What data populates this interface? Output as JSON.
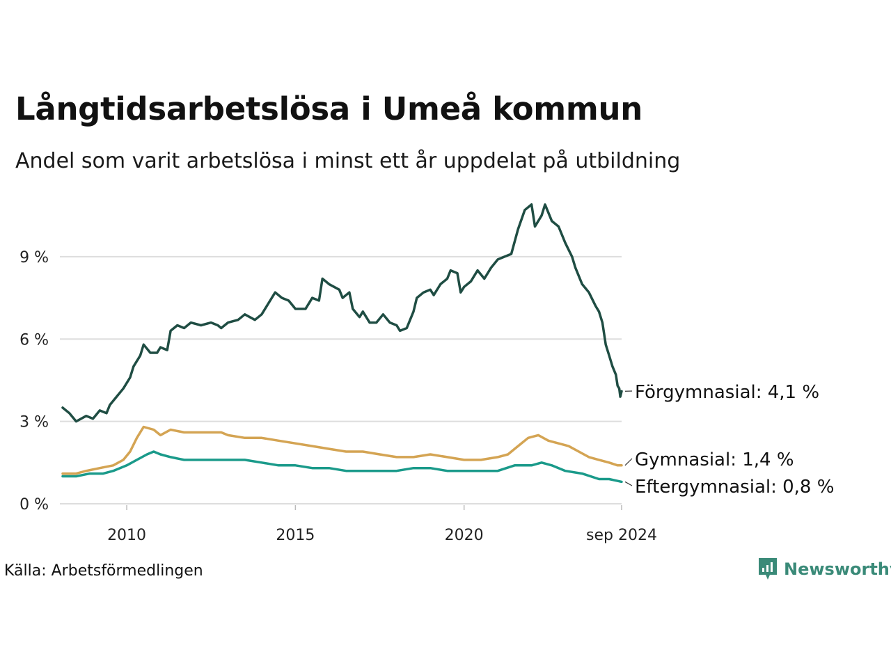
{
  "title": "Långtidsarbetslösa i Umeå kommun",
  "subtitle": "Andel som varit arbetslösa i minst ett år uppdelat på utbildning",
  "source": "Källa: Arbetsförmedlingen",
  "brand": "Newsworthy",
  "colors": {
    "forgymnasial": "#1f4d43",
    "gymnasial": "#d4a453",
    "eftergymnasial": "#1a9a8a",
    "grid": "#dddddd",
    "brand": "#3a8a78"
  },
  "chart_data": {
    "type": "line",
    "ylim": [
      0,
      11
    ],
    "xlim": [
      2008.1,
      2024.67
    ],
    "y_ticks": [
      {
        "value": 0,
        "label": "0 %"
      },
      {
        "value": 3,
        "label": "3 %"
      },
      {
        "value": 6,
        "label": "6 %"
      },
      {
        "value": 9,
        "label": "9 %"
      }
    ],
    "x_ticks": [
      {
        "value": 2010,
        "label": "2010"
      },
      {
        "value": 2015,
        "label": "2015"
      },
      {
        "value": 2020,
        "label": "2020"
      },
      {
        "value": 2024.67,
        "label": "sep 2024"
      }
    ],
    "grid": true,
    "series": [
      {
        "name": "Förgymnasial",
        "end_label": "Förgymnasial: 4,1 %",
        "color_key": "forgymnasial",
        "points": [
          [
            2008.1,
            3.5
          ],
          [
            2008.3,
            3.3
          ],
          [
            2008.5,
            3.0
          ],
          [
            2008.8,
            3.2
          ],
          [
            2009.0,
            3.1
          ],
          [
            2009.2,
            3.4
          ],
          [
            2009.4,
            3.3
          ],
          [
            2009.5,
            3.6
          ],
          [
            2009.7,
            3.9
          ],
          [
            2009.9,
            4.2
          ],
          [
            2010.1,
            4.6
          ],
          [
            2010.2,
            5.0
          ],
          [
            2010.4,
            5.4
          ],
          [
            2010.5,
            5.8
          ],
          [
            2010.7,
            5.5
          ],
          [
            2010.9,
            5.5
          ],
          [
            2011.0,
            5.7
          ],
          [
            2011.2,
            5.6
          ],
          [
            2011.3,
            6.3
          ],
          [
            2011.5,
            6.5
          ],
          [
            2011.7,
            6.4
          ],
          [
            2011.9,
            6.6
          ],
          [
            2012.2,
            6.5
          ],
          [
            2012.5,
            6.6
          ],
          [
            2012.7,
            6.5
          ],
          [
            2012.8,
            6.4
          ],
          [
            2013.0,
            6.6
          ],
          [
            2013.3,
            6.7
          ],
          [
            2013.5,
            6.9
          ],
          [
            2013.8,
            6.7
          ],
          [
            2014.0,
            6.9
          ],
          [
            2014.2,
            7.3
          ],
          [
            2014.4,
            7.7
          ],
          [
            2014.6,
            7.5
          ],
          [
            2014.8,
            7.4
          ],
          [
            2015.0,
            7.1
          ],
          [
            2015.3,
            7.1
          ],
          [
            2015.5,
            7.5
          ],
          [
            2015.7,
            7.4
          ],
          [
            2015.8,
            8.2
          ],
          [
            2016.0,
            8.0
          ],
          [
            2016.3,
            7.8
          ],
          [
            2016.4,
            7.5
          ],
          [
            2016.6,
            7.7
          ],
          [
            2016.7,
            7.1
          ],
          [
            2016.9,
            6.8
          ],
          [
            2017.0,
            7.0
          ],
          [
            2017.2,
            6.6
          ],
          [
            2017.4,
            6.6
          ],
          [
            2017.6,
            6.9
          ],
          [
            2017.8,
            6.6
          ],
          [
            2018.0,
            6.5
          ],
          [
            2018.1,
            6.3
          ],
          [
            2018.3,
            6.4
          ],
          [
            2018.5,
            7.0
          ],
          [
            2018.6,
            7.5
          ],
          [
            2018.8,
            7.7
          ],
          [
            2019.0,
            7.8
          ],
          [
            2019.1,
            7.6
          ],
          [
            2019.3,
            8.0
          ],
          [
            2019.5,
            8.2
          ],
          [
            2019.6,
            8.5
          ],
          [
            2019.8,
            8.4
          ],
          [
            2019.9,
            7.7
          ],
          [
            2020.0,
            7.9
          ],
          [
            2020.2,
            8.1
          ],
          [
            2020.4,
            8.5
          ],
          [
            2020.6,
            8.2
          ],
          [
            2020.8,
            8.6
          ],
          [
            2021.0,
            8.9
          ],
          [
            2021.2,
            9.0
          ],
          [
            2021.4,
            9.1
          ],
          [
            2021.6,
            10.0
          ],
          [
            2021.8,
            10.7
          ],
          [
            2022.0,
            10.9
          ],
          [
            2022.1,
            10.1
          ],
          [
            2022.3,
            10.5
          ],
          [
            2022.4,
            10.9
          ],
          [
            2022.6,
            10.3
          ],
          [
            2022.8,
            10.1
          ],
          [
            2023.0,
            9.5
          ],
          [
            2023.2,
            9.0
          ],
          [
            2023.3,
            8.6
          ],
          [
            2023.5,
            8.0
          ],
          [
            2023.7,
            7.7
          ],
          [
            2023.9,
            7.2
          ],
          [
            2024.0,
            7.0
          ],
          [
            2024.1,
            6.6
          ],
          [
            2024.2,
            5.8
          ],
          [
            2024.3,
            5.4
          ],
          [
            2024.4,
            5.0
          ],
          [
            2024.5,
            4.7
          ],
          [
            2024.55,
            4.3
          ],
          [
            2024.6,
            4.2
          ],
          [
            2024.63,
            3.9
          ],
          [
            2024.67,
            4.1
          ]
        ]
      },
      {
        "name": "Gymnasial",
        "end_label": "Gymnasial: 1,4 %",
        "color_key": "gymnasial",
        "points": [
          [
            2008.1,
            1.1
          ],
          [
            2008.5,
            1.1
          ],
          [
            2008.8,
            1.2
          ],
          [
            2009.2,
            1.3
          ],
          [
            2009.6,
            1.4
          ],
          [
            2009.9,
            1.6
          ],
          [
            2010.1,
            1.9
          ],
          [
            2010.3,
            2.4
          ],
          [
            2010.5,
            2.8
          ],
          [
            2010.8,
            2.7
          ],
          [
            2011.0,
            2.5
          ],
          [
            2011.3,
            2.7
          ],
          [
            2011.7,
            2.6
          ],
          [
            2012.0,
            2.6
          ],
          [
            2012.5,
            2.6
          ],
          [
            2012.8,
            2.6
          ],
          [
            2013.0,
            2.5
          ],
          [
            2013.5,
            2.4
          ],
          [
            2014.0,
            2.4
          ],
          [
            2014.5,
            2.3
          ],
          [
            2015.0,
            2.2
          ],
          [
            2015.5,
            2.1
          ],
          [
            2016.0,
            2.0
          ],
          [
            2016.5,
            1.9
          ],
          [
            2017.0,
            1.9
          ],
          [
            2017.5,
            1.8
          ],
          [
            2018.0,
            1.7
          ],
          [
            2018.5,
            1.7
          ],
          [
            2019.0,
            1.8
          ],
          [
            2019.5,
            1.7
          ],
          [
            2020.0,
            1.6
          ],
          [
            2020.5,
            1.6
          ],
          [
            2021.0,
            1.7
          ],
          [
            2021.3,
            1.8
          ],
          [
            2021.6,
            2.1
          ],
          [
            2021.9,
            2.4
          ],
          [
            2022.2,
            2.5
          ],
          [
            2022.5,
            2.3
          ],
          [
            2022.8,
            2.2
          ],
          [
            2023.1,
            2.1
          ],
          [
            2023.4,
            1.9
          ],
          [
            2023.7,
            1.7
          ],
          [
            2024.0,
            1.6
          ],
          [
            2024.3,
            1.5
          ],
          [
            2024.55,
            1.4
          ],
          [
            2024.67,
            1.4
          ]
        ]
      },
      {
        "name": "Eftergymnasial",
        "end_label": "Eftergymnasial: 0,8 %",
        "color_key": "eftergymnasial",
        "points": [
          [
            2008.1,
            1.0
          ],
          [
            2008.5,
            1.0
          ],
          [
            2008.9,
            1.1
          ],
          [
            2009.3,
            1.1
          ],
          [
            2009.6,
            1.2
          ],
          [
            2010.0,
            1.4
          ],
          [
            2010.3,
            1.6
          ],
          [
            2010.6,
            1.8
          ],
          [
            2010.8,
            1.9
          ],
          [
            2011.0,
            1.8
          ],
          [
            2011.3,
            1.7
          ],
          [
            2011.7,
            1.6
          ],
          [
            2012.0,
            1.6
          ],
          [
            2012.5,
            1.6
          ],
          [
            2013.0,
            1.6
          ],
          [
            2013.5,
            1.6
          ],
          [
            2014.0,
            1.5
          ],
          [
            2014.5,
            1.4
          ],
          [
            2015.0,
            1.4
          ],
          [
            2015.5,
            1.3
          ],
          [
            2016.0,
            1.3
          ],
          [
            2016.5,
            1.2
          ],
          [
            2017.0,
            1.2
          ],
          [
            2017.5,
            1.2
          ],
          [
            2018.0,
            1.2
          ],
          [
            2018.5,
            1.3
          ],
          [
            2019.0,
            1.3
          ],
          [
            2019.5,
            1.2
          ],
          [
            2020.0,
            1.2
          ],
          [
            2020.5,
            1.2
          ],
          [
            2021.0,
            1.2
          ],
          [
            2021.5,
            1.4
          ],
          [
            2022.0,
            1.4
          ],
          [
            2022.3,
            1.5
          ],
          [
            2022.6,
            1.4
          ],
          [
            2023.0,
            1.2
          ],
          [
            2023.5,
            1.1
          ],
          [
            2024.0,
            0.9
          ],
          [
            2024.3,
            0.9
          ],
          [
            2024.67,
            0.8
          ]
        ]
      }
    ]
  }
}
